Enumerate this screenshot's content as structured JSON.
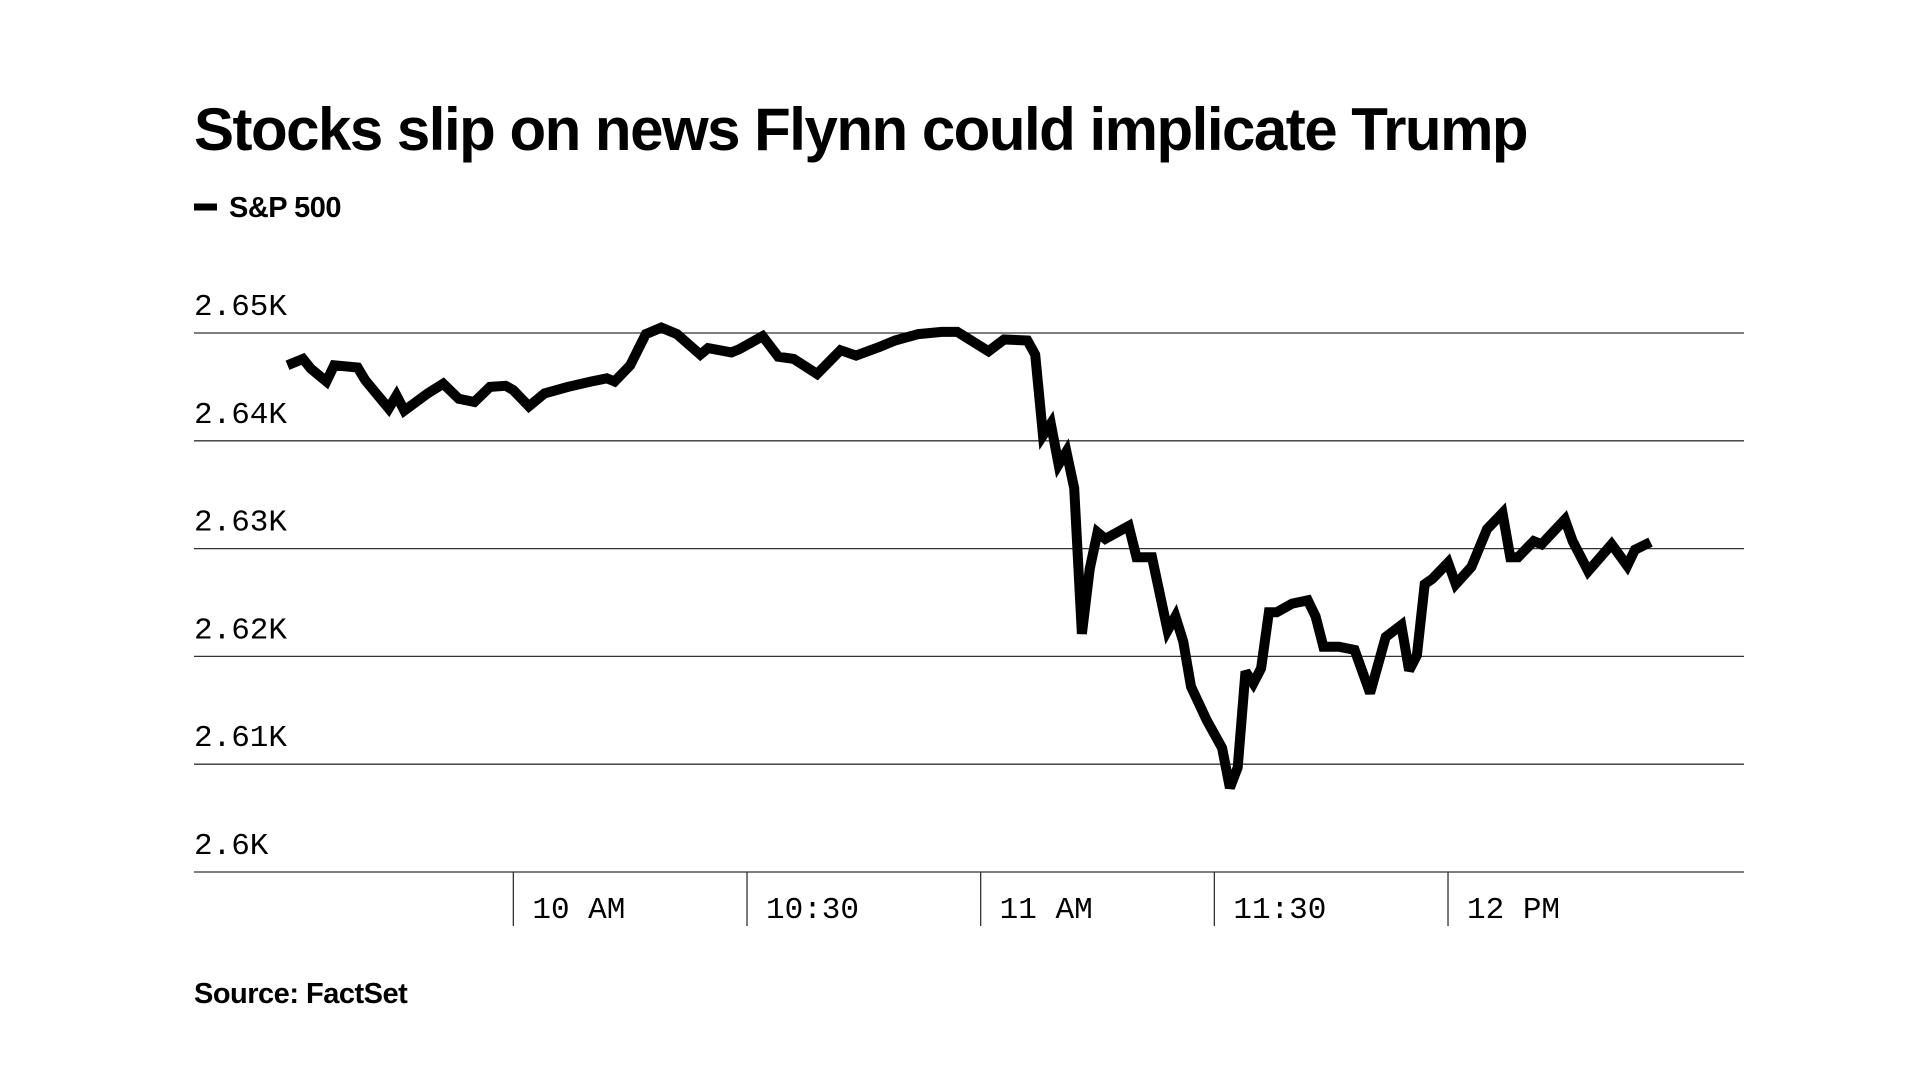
{
  "chart_data": {
    "type": "line",
    "title": "Stocks slip on news Flynn could implicate Trump",
    "source": "Source: FactSet",
    "x": [
      "09:31",
      "09:33",
      "09:34",
      "09:36",
      "09:37",
      "09:40",
      "09:41",
      "09:44",
      "09:45",
      "09:46",
      "09:49",
      "09:51",
      "09:53",
      "09:55",
      "09:57",
      "09:59",
      "10:00",
      "10:02",
      "10:04",
      "10:07",
      "10:10",
      "10:12",
      "10:13",
      "10:15",
      "10:17",
      "10:19",
      "10:21",
      "10:24",
      "10:25",
      "10:28",
      "10:29",
      "10:32",
      "10:34",
      "10:36",
      "10:39",
      "10:42",
      "10:44",
      "10:47",
      "10:49",
      "10:52",
      "10:55",
      "10:57",
      "11:01",
      "11:03",
      "11:06",
      "11:07",
      "11:08",
      "11:09",
      "11:10",
      "11:11",
      "11:12",
      "11:13",
      "11:14",
      "11:15",
      "11:16",
      "11:19",
      "11:20",
      "11:22",
      "11:24",
      "11:25",
      "11:26",
      "11:27",
      "11:29",
      "11:31",
      "11:32",
      "11:33",
      "11:34",
      "11:35",
      "11:36",
      "11:37",
      "11:38",
      "11:40",
      "11:42",
      "11:43",
      "11:44",
      "11:46",
      "11:48",
      "11:50",
      "11:52",
      "11:54",
      "11:55",
      "11:56",
      "11:57",
      "11:58",
      "12:00",
      "12:01",
      "12:03",
      "12:05",
      "12:07",
      "12:08",
      "12:09",
      "12:11",
      "12:12",
      "12:15",
      "12:16",
      "12:18",
      "12:21",
      "12:23",
      "12:24",
      "12:26"
    ],
    "series": [
      {
        "name": "S&P 500",
        "color": "#000000",
        "values": [
          2647.0,
          2647.6,
          2646.7,
          2645.5,
          2647.0,
          2646.8,
          2645.6,
          2643.0,
          2644.2,
          2642.8,
          2644.4,
          2645.3,
          2643.9,
          2643.6,
          2645.0,
          2645.1,
          2644.7,
          2643.2,
          2644.4,
          2645.0,
          2645.5,
          2645.8,
          2645.5,
          2647.0,
          2649.9,
          2650.5,
          2649.9,
          2648.0,
          2648.6,
          2648.2,
          2648.5,
          2649.7,
          2647.8,
          2647.6,
          2646.2,
          2648.4,
          2647.9,
          2648.7,
          2649.3,
          2649.9,
          2650.1,
          2650.1,
          2648.3,
          2649.4,
          2649.3,
          2648.0,
          2640.5,
          2641.6,
          2637.8,
          2639.0,
          2635.6,
          2622.1,
          2628.1,
          2631.5,
          2630.9,
          2632.1,
          2629.2,
          2629.2,
          2622.4,
          2623.7,
          2621.4,
          2617.2,
          2614.1,
          2611.5,
          2607.8,
          2609.7,
          2618.6,
          2617.5,
          2618.9,
          2624.1,
          2624.1,
          2624.9,
          2625.2,
          2623.7,
          2620.9,
          2620.9,
          2620.6,
          2616.6,
          2621.8,
          2622.9,
          2618.7,
          2620.1,
          2626.7,
          2627.2,
          2628.7,
          2626.7,
          2628.3,
          2631.8,
          2633.3,
          2629.2,
          2629.2,
          2630.7,
          2630.4,
          2632.7,
          2630.7,
          2627.9,
          2630.4,
          2628.4,
          2629.9,
          2630.6
        ]
      }
    ],
    "xlim": [
      "09:19",
      "12:38"
    ],
    "xticks": [
      {
        "value": "10:00",
        "label": "10 AM"
      },
      "10:30",
      {
        "value": "11:00",
        "label": "11 AM"
      },
      "11:30",
      {
        "value": "12:00",
        "label": "12 PM"
      }
    ],
    "ylim": [
      2600,
      2650
    ],
    "yticks": [
      {
        "value": 2600,
        "label": "2.6K"
      },
      {
        "value": 2610,
        "label": "2.61K"
      },
      {
        "value": 2620,
        "label": "2.62K"
      },
      {
        "value": 2630,
        "label": "2.63K"
      },
      {
        "value": 2640,
        "label": "2.64K"
      },
      {
        "value": 2650,
        "label": "2.65K"
      }
    ],
    "grid": true
  }
}
